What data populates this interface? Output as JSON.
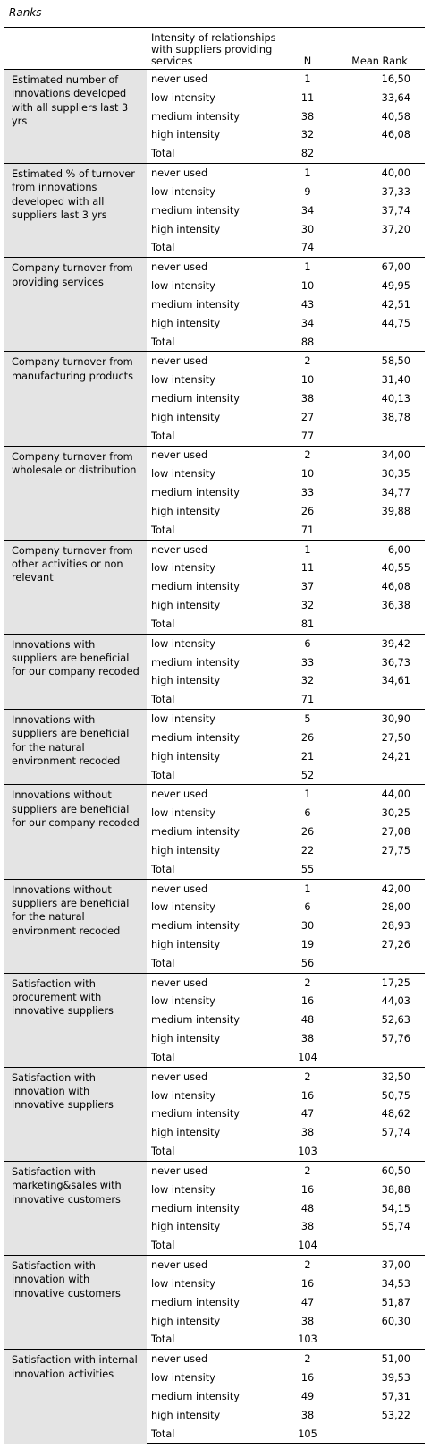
{
  "caption": "Ranks",
  "header": {
    "col_level": "Intensity of relationships with suppliers providing services",
    "col_n": "N",
    "col_mean_rank": "Mean Rank"
  },
  "groups": [
    {
      "variable": "Estimated number of innovations developed with all suppliers last 3 yrs",
      "rows": [
        {
          "level": "never used",
          "n": "1",
          "mean_rank": "16,50"
        },
        {
          "level": "low intensity",
          "n": "11",
          "mean_rank": "33,64"
        },
        {
          "level": "medium intensity",
          "n": "38",
          "mean_rank": "40,58"
        },
        {
          "level": "high intensity",
          "n": "32",
          "mean_rank": "46,08"
        },
        {
          "level": "Total",
          "n": "82",
          "mean_rank": ""
        }
      ]
    },
    {
      "variable": "Estimated % of turnover from innovations developed with all suppliers last 3 yrs",
      "rows": [
        {
          "level": "never used",
          "n": "1",
          "mean_rank": "40,00"
        },
        {
          "level": "low intensity",
          "n": "9",
          "mean_rank": "37,33"
        },
        {
          "level": "medium intensity",
          "n": "34",
          "mean_rank": "37,74"
        },
        {
          "level": "high intensity",
          "n": "30",
          "mean_rank": "37,20"
        },
        {
          "level": "Total",
          "n": "74",
          "mean_rank": ""
        }
      ]
    },
    {
      "variable": "Company turnover from providing services",
      "rows": [
        {
          "level": "never used",
          "n": "1",
          "mean_rank": "67,00"
        },
        {
          "level": "low intensity",
          "n": "10",
          "mean_rank": "49,95"
        },
        {
          "level": "medium intensity",
          "n": "43",
          "mean_rank": "42,51"
        },
        {
          "level": "high intensity",
          "n": "34",
          "mean_rank": "44,75"
        },
        {
          "level": "Total",
          "n": "88",
          "mean_rank": ""
        }
      ]
    },
    {
      "variable": "Company  turnover from manufacturing products",
      "rows": [
        {
          "level": "never used",
          "n": "2",
          "mean_rank": "58,50"
        },
        {
          "level": "low intensity",
          "n": "10",
          "mean_rank": "31,40"
        },
        {
          "level": "medium intensity",
          "n": "38",
          "mean_rank": "40,13"
        },
        {
          "level": "high intensity",
          "n": "27",
          "mean_rank": "38,78"
        },
        {
          "level": "Total",
          "n": "77",
          "mean_rank": ""
        }
      ]
    },
    {
      "variable": "Company  turnover from wholesale or distribution",
      "rows": [
        {
          "level": "never used",
          "n": "2",
          "mean_rank": "34,00"
        },
        {
          "level": "low intensity",
          "n": "10",
          "mean_rank": "30,35"
        },
        {
          "level": "medium intensity",
          "n": "33",
          "mean_rank": "34,77"
        },
        {
          "level": "high intensity",
          "n": "26",
          "mean_rank": "39,88"
        },
        {
          "level": "Total",
          "n": "71",
          "mean_rank": ""
        }
      ]
    },
    {
      "variable": "Company turnover from other activities or non relevant",
      "rows": [
        {
          "level": "never used",
          "n": "1",
          "mean_rank": "6,00"
        },
        {
          "level": "low intensity",
          "n": "11",
          "mean_rank": "40,55"
        },
        {
          "level": "medium intensity",
          "n": "37",
          "mean_rank": "46,08"
        },
        {
          "level": "high intensity",
          "n": "32",
          "mean_rank": "36,38"
        },
        {
          "level": "Total",
          "n": "81",
          "mean_rank": ""
        }
      ]
    },
    {
      "variable": "Innovations with suppliers are beneficial for our company recoded",
      "rows": [
        {
          "level": "low intensity",
          "n": "6",
          "mean_rank": "39,42"
        },
        {
          "level": "medium intensity",
          "n": "33",
          "mean_rank": "36,73"
        },
        {
          "level": "high intensity",
          "n": "32",
          "mean_rank": "34,61"
        },
        {
          "level": "Total",
          "n": "71",
          "mean_rank": ""
        }
      ]
    },
    {
      "variable": "Innovations with suppliers are beneficial for the natural environment recoded",
      "rows": [
        {
          "level": "low intensity",
          "n": "5",
          "mean_rank": "30,90"
        },
        {
          "level": "medium intensity",
          "n": "26",
          "mean_rank": "27,50"
        },
        {
          "level": "high intensity",
          "n": "21",
          "mean_rank": "24,21"
        },
        {
          "level": "Total",
          "n": "52",
          "mean_rank": ""
        }
      ]
    },
    {
      "variable": "Innovations without suppliers are beneficial for our company recoded",
      "rows": [
        {
          "level": "never used",
          "n": "1",
          "mean_rank": "44,00"
        },
        {
          "level": "low intensity",
          "n": "6",
          "mean_rank": "30,25"
        },
        {
          "level": "medium intensity",
          "n": "26",
          "mean_rank": "27,08"
        },
        {
          "level": "high intensity",
          "n": "22",
          "mean_rank": "27,75"
        },
        {
          "level": "Total",
          "n": "55",
          "mean_rank": ""
        }
      ]
    },
    {
      "variable": "Innovations without suppliers are beneficial for the natural environment recoded",
      "rows": [
        {
          "level": "never used",
          "n": "1",
          "mean_rank": "42,00"
        },
        {
          "level": "low intensity",
          "n": "6",
          "mean_rank": "28,00"
        },
        {
          "level": "medium intensity",
          "n": "30",
          "mean_rank": "28,93"
        },
        {
          "level": "high intensity",
          "n": "19",
          "mean_rank": "27,26"
        },
        {
          "level": "Total",
          "n": "56",
          "mean_rank": ""
        }
      ]
    },
    {
      "variable": "Satisfaction with procurement with innovative suppliers",
      "rows": [
        {
          "level": "never used",
          "n": "2",
          "mean_rank": "17,25"
        },
        {
          "level": "low intensity",
          "n": "16",
          "mean_rank": "44,03"
        },
        {
          "level": "medium intensity",
          "n": "48",
          "mean_rank": "52,63"
        },
        {
          "level": "high intensity",
          "n": "38",
          "mean_rank": "57,76"
        },
        {
          "level": "Total",
          "n": "104",
          "mean_rank": ""
        }
      ]
    },
    {
      "variable": "Satisfaction with innovation with innovative suppliers",
      "rows": [
        {
          "level": "never used",
          "n": "2",
          "mean_rank": "32,50"
        },
        {
          "level": "low intensity",
          "n": "16",
          "mean_rank": "50,75"
        },
        {
          "level": "medium intensity",
          "n": "47",
          "mean_rank": "48,62"
        },
        {
          "level": "high intensity",
          "n": "38",
          "mean_rank": "57,74"
        },
        {
          "level": "Total",
          "n": "103",
          "mean_rank": ""
        }
      ]
    },
    {
      "variable": "Satisfaction with marketing&sales with innovative customers",
      "rows": [
        {
          "level": "never used",
          "n": "2",
          "mean_rank": "60,50"
        },
        {
          "level": "low intensity",
          "n": "16",
          "mean_rank": "38,88"
        },
        {
          "level": "medium intensity",
          "n": "48",
          "mean_rank": "54,15"
        },
        {
          "level": "high intensity",
          "n": "38",
          "mean_rank": "55,74"
        },
        {
          "level": "Total",
          "n": "104",
          "mean_rank": ""
        }
      ]
    },
    {
      "variable": "Satisfaction with innovation with innovative customers",
      "rows": [
        {
          "level": "never used",
          "n": "2",
          "mean_rank": "37,00"
        },
        {
          "level": "low intensity",
          "n": "16",
          "mean_rank": "34,53"
        },
        {
          "level": "medium intensity",
          "n": "47",
          "mean_rank": "51,87"
        },
        {
          "level": "high intensity",
          "n": "38",
          "mean_rank": "60,30"
        },
        {
          "level": "Total",
          "n": "103",
          "mean_rank": ""
        }
      ]
    },
    {
      "variable": "Satisfaction with internal innovation activities",
      "rows": [
        {
          "level": "never used",
          "n": "2",
          "mean_rank": "51,00"
        },
        {
          "level": "low intensity",
          "n": "16",
          "mean_rank": "39,53"
        },
        {
          "level": "medium intensity",
          "n": "49",
          "mean_rank": "57,31"
        },
        {
          "level": "high intensity",
          "n": "38",
          "mean_rank": "53,22"
        },
        {
          "level": "Total",
          "n": "105",
          "mean_rank": ""
        }
      ]
    }
  ]
}
